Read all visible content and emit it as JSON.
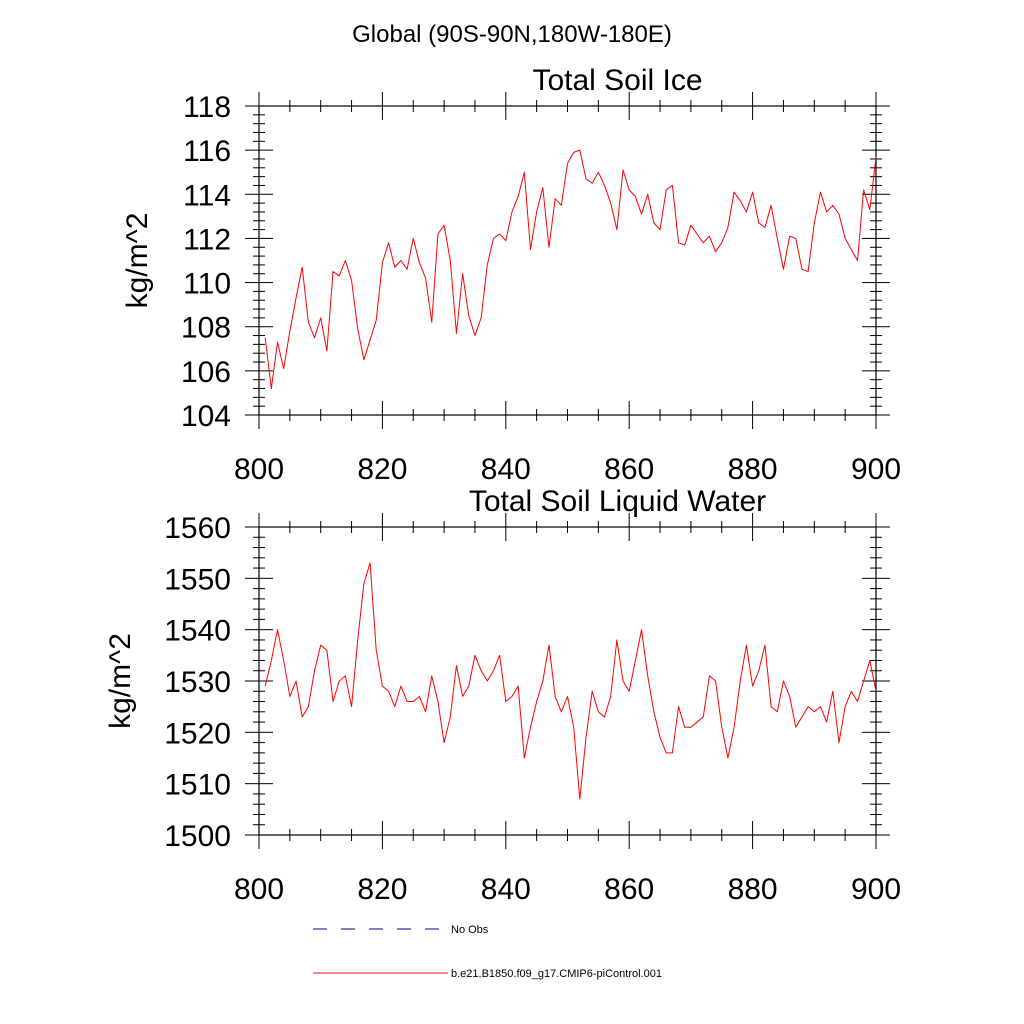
{
  "page_title": "Global (90S-90N,180W-180E)",
  "legend": {
    "entries": [
      {
        "label": "No Obs",
        "color": "#000080",
        "dash": true
      },
      {
        "label": "b.e21.B1850.f09_g17.CMIP6-piControl.001",
        "color": "#ff0000",
        "dash": false
      }
    ]
  },
  "chart_data": [
    {
      "type": "line",
      "title": "Total Soil Ice",
      "xlabel": "",
      "ylabel": "kg/m^2",
      "xlim": [
        800,
        900
      ],
      "ylim": [
        104,
        118
      ],
      "xticks": [
        800,
        820,
        840,
        860,
        880,
        900
      ],
      "yticks": [
        104,
        106,
        108,
        110,
        112,
        114,
        116,
        118
      ],
      "grid": false,
      "series": [
        {
          "color": "#ff0000",
          "x": [
            801,
            802,
            803,
            804,
            805,
            806,
            807,
            808,
            809,
            810,
            811,
            812,
            813,
            814,
            815,
            816,
            817,
            818,
            819,
            820,
            821,
            822,
            823,
            824,
            825,
            826,
            827,
            828,
            829,
            830,
            831,
            832,
            833,
            834,
            835,
            836,
            837,
            838,
            839,
            840,
            841,
            842,
            843,
            844,
            845,
            846,
            847,
            848,
            849,
            850,
            851,
            852,
            853,
            854,
            855,
            856,
            857,
            858,
            859,
            860,
            861,
            862,
            863,
            864,
            865,
            866,
            867,
            868,
            869,
            870,
            871,
            872,
            873,
            874,
            875,
            876,
            877,
            878,
            879,
            880,
            881,
            882,
            883,
            884,
            885,
            886,
            887,
            888,
            889,
            890,
            891,
            892,
            893,
            894,
            895,
            896,
            897,
            898,
            899,
            900
          ],
          "values": [
            107.5,
            105.2,
            107.3,
            106.1,
            107.8,
            109.3,
            110.7,
            108.2,
            107.5,
            108.4,
            106.9,
            110.5,
            110.3,
            111.0,
            110.1,
            107.9,
            106.5,
            107.4,
            108.3,
            110.9,
            111.8,
            110.7,
            111.0,
            110.6,
            112.0,
            110.9,
            110.2,
            108.2,
            112.2,
            112.6,
            111.0,
            107.7,
            110.4,
            108.5,
            107.6,
            108.4,
            110.8,
            112.0,
            112.2,
            111.9,
            113.2,
            113.9,
            115.0,
            111.5,
            113.2,
            114.3,
            111.6,
            113.8,
            113.5,
            115.4,
            115.9,
            116.0,
            114.7,
            114.5,
            115.0,
            114.4,
            113.6,
            112.4,
            115.1,
            114.2,
            113.9,
            113.1,
            114.0,
            112.7,
            112.4,
            114.2,
            114.4,
            111.8,
            111.7,
            112.6,
            112.2,
            111.8,
            112.1,
            111.4,
            111.8,
            112.5,
            114.1,
            113.7,
            113.2,
            114.1,
            112.7,
            112.5,
            113.5,
            112.0,
            110.6,
            112.1,
            112.0,
            110.6,
            110.5,
            112.7,
            114.1,
            113.2,
            113.5,
            113.1,
            112.0,
            111.5,
            111.0,
            114.2,
            113.3,
            115.7
          ]
        }
      ]
    },
    {
      "type": "line",
      "title": "Total Soil Liquid Water",
      "xlabel": "",
      "ylabel": "kg/m^2",
      "xlim": [
        800,
        900
      ],
      "ylim": [
        1500,
        1560
      ],
      "xticks": [
        800,
        820,
        840,
        860,
        880,
        900
      ],
      "yticks": [
        1500,
        1510,
        1520,
        1530,
        1540,
        1550,
        1560
      ],
      "grid": false,
      "series": [
        {
          "color": "#ff0000",
          "x": [
            801,
            802,
            803,
            804,
            805,
            806,
            807,
            808,
            809,
            810,
            811,
            812,
            813,
            814,
            815,
            816,
            817,
            818,
            819,
            820,
            821,
            822,
            823,
            824,
            825,
            826,
            827,
            828,
            829,
            830,
            831,
            832,
            833,
            834,
            835,
            836,
            837,
            838,
            839,
            840,
            841,
            842,
            843,
            844,
            845,
            846,
            847,
            848,
            849,
            850,
            851,
            852,
            853,
            854,
            855,
            856,
            857,
            858,
            859,
            860,
            861,
            862,
            863,
            864,
            865,
            866,
            867,
            868,
            869,
            870,
            871,
            872,
            873,
            874,
            875,
            876,
            877,
            878,
            879,
            880,
            881,
            882,
            883,
            884,
            885,
            886,
            887,
            888,
            889,
            890,
            891,
            892,
            893,
            894,
            895,
            896,
            897,
            898,
            899,
            900
          ],
          "values": [
            1529,
            1534,
            1540,
            1534,
            1527,
            1530,
            1523,
            1525,
            1532,
            1537,
            1536,
            1526,
            1530,
            1531,
            1525,
            1538,
            1549,
            1553,
            1536,
            1529,
            1528,
            1525,
            1529,
            1526,
            1526,
            1527,
            1524,
            1531,
            1526,
            1518,
            1523,
            1533,
            1527,
            1529,
            1535,
            1532,
            1530,
            1532,
            1535,
            1526,
            1527,
            1529,
            1515,
            1521,
            1526,
            1530,
            1537,
            1527,
            1524,
            1527,
            1521,
            1507,
            1519,
            1528,
            1524,
            1523,
            1527,
            1538,
            1530,
            1528,
            1534,
            1540,
            1531,
            1524,
            1519,
            1516,
            1516,
            1525,
            1521,
            1521,
            1522,
            1523,
            1531,
            1530,
            1521,
            1515,
            1521,
            1530,
            1537,
            1529,
            1532,
            1537,
            1525,
            1524,
            1530,
            1527,
            1521,
            1523,
            1525,
            1524,
            1525,
            1522,
            1528,
            1518,
            1525,
            1528,
            1526,
            1530,
            1534,
            1528
          ]
        }
      ]
    }
  ]
}
